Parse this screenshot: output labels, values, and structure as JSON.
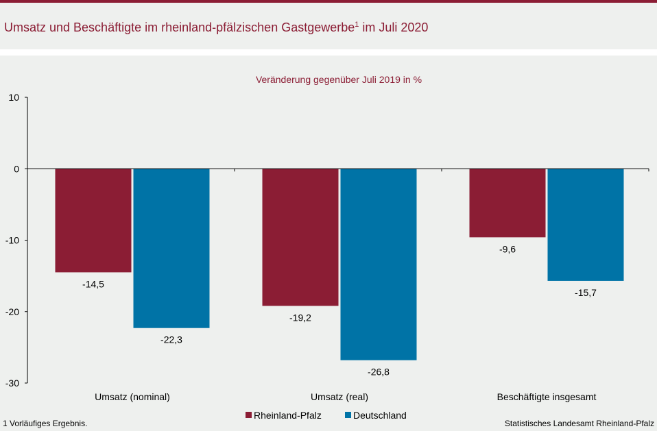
{
  "header": {
    "title": "Umsatz und Beschäftigte im rheinland-pfälzischen Gastgewerbe",
    "title_sup": "1",
    "title_suffix": " im Juli 2020"
  },
  "footer": {
    "footnote": "1 Vorläufiges  Ergebnis.",
    "source": "Statistisches Landesamt Rheinland-Pfalz"
  },
  "colors": {
    "accent": "#8b1d34",
    "rheinland_pfalz": "#8b1d34",
    "deutschland": "#0073a6",
    "background": "#eef0ee"
  },
  "chart_data": {
    "type": "bar",
    "subtitle": "Veränderung  gegenüber  Juli 2019 in %",
    "categories": [
      "Umsatz (nominal)",
      "Umsatz (real)",
      "Beschäftigte insgesamt"
    ],
    "series": [
      {
        "name": "Rheinland-Pfalz",
        "values": [
          -14.5,
          -19.2,
          -9.6
        ],
        "labels": [
          "-14,5",
          "-19,2",
          "-9,6"
        ],
        "color": "#8b1d34"
      },
      {
        "name": "Deutschland",
        "values": [
          -22.3,
          -26.8,
          -15.7
        ],
        "labels": [
          "-22,3",
          "-26,8",
          "-15,7"
        ],
        "color": "#0073a6"
      }
    ],
    "ylim": [
      -30,
      10
    ],
    "yticks": [
      10,
      0,
      -10,
      -20,
      -30
    ],
    "ytick_labels": [
      "10",
      "0",
      "-10",
      "-20",
      "-30"
    ],
    "xlabel": "",
    "ylabel": "",
    "grid": false,
    "legend_position": "bottom-center"
  }
}
